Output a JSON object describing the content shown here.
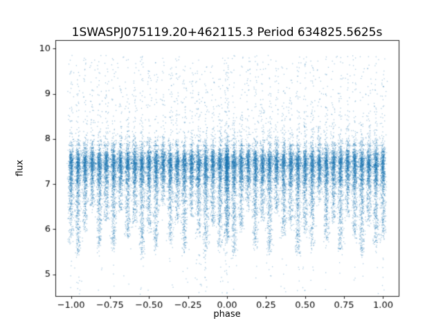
{
  "chart_data": {
    "type": "scatter",
    "title": "1SWASPJ075119.20+462115.3 Period 634825.5625s",
    "xlabel": "phase",
    "ylabel": "flux",
    "xlim": [
      -1.1,
      1.1
    ],
    "ylim": [
      4.52,
      10.19
    ],
    "xticks": {
      "values": [
        -1,
        -0.75,
        -0.5,
        -0.25,
        0,
        0.25,
        0.5,
        0.75,
        1
      ],
      "labels": [
        "−1.00",
        "−0.75",
        "−0.50",
        "−0.25",
        "0.00",
        "0.25",
        "0.50",
        "0.75",
        "1.00"
      ]
    },
    "yticks": {
      "values": [
        5,
        6,
        7,
        8,
        9,
        10
      ],
      "labels": [
        "5",
        "6",
        "7",
        "8",
        "9",
        "10"
      ]
    },
    "grid": false,
    "legend": null,
    "marker": {
      "color": "#1f77b4",
      "alpha": 0.45,
      "size": 1.2
    },
    "description": "Phase-folded light curve: dense flux band near 7.45 broken into vertical columns, with quasi-periodic dip streaks reaching ~4.6 and sparse bright outliers up to ~9.9. Pattern in phase [0,1] is duplicated at [-1,0].",
    "point_cloud": {
      "seed": 42,
      "band": {
        "mean": 7.45,
        "sigma": 0.18
      },
      "base": {
        "count": 4500,
        "sigma": 0.16
      },
      "columns": {
        "x_sigma": 0.007,
        "core_points": 380,
        "dip_strengths": [
          0.75,
          0.9,
          0.6,
          0.35,
          0.8,
          0.5,
          0.85,
          0.4,
          0.7,
          0.55,
          0.9,
          0.65,
          0.8,
          0.3,
          0.75,
          0.5,
          0.85,
          0.45,
          0.7,
          0.9,
          0.55,
          0.8,
          0.7
        ]
      },
      "dips": {
        "top": 7.15,
        "max_depth": 1.9,
        "max_points": 420,
        "decay": 1.7
      },
      "upper": {
        "points_per_column": 45,
        "base": 7.85,
        "range": 2.0,
        "decay": 2.2
      },
      "low": {
        "count": 220,
        "min": 4.55,
        "max": 5.6
      }
    }
  }
}
